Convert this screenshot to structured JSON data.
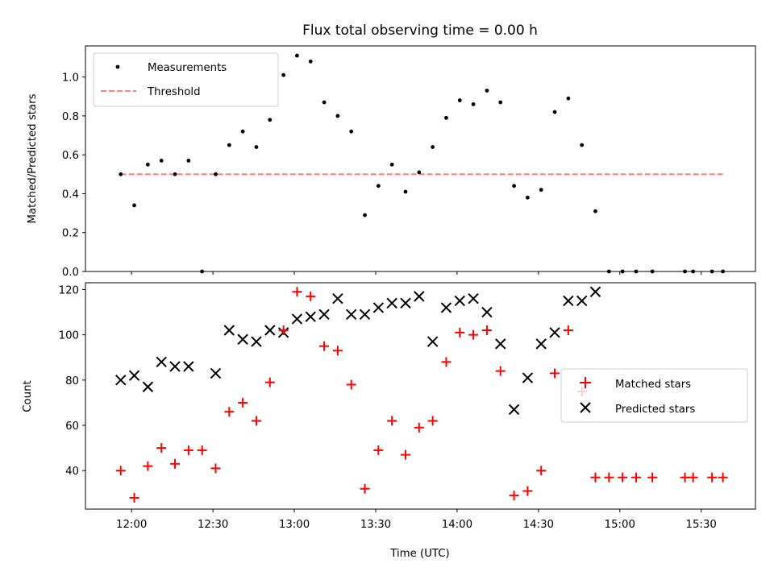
{
  "chart_data": [
    {
      "type": "scatter",
      "title": "Flux total observing time = 0.00 h",
      "xlabel": "",
      "ylabel": "Matched/Predicted stars",
      "ylim": [
        0,
        1.16
      ],
      "yticks": [
        "0.0",
        "0.2",
        "0.4",
        "0.6",
        "0.8",
        "1.0"
      ],
      "xlim": [
        "11:43",
        "15:50"
      ],
      "legend": {
        "placement": "top-left",
        "entries": [
          "Measurements",
          "Threshold"
        ]
      },
      "series": [
        {
          "name": "Measurements",
          "marker": "dot",
          "color": "#000000",
          "x": [
            "11:56",
            "12:01",
            "12:06",
            "12:11",
            "12:16",
            "12:21",
            "12:26",
            "12:31",
            "12:36",
            "12:41",
            "12:46",
            "12:51",
            "12:56",
            "13:01",
            "13:06",
            "13:11",
            "13:16",
            "13:21",
            "13:26",
            "13:31",
            "13:36",
            "13:41",
            "13:46",
            "13:51",
            "13:56",
            "14:01",
            "14:06",
            "14:11",
            "14:16",
            "14:21",
            "14:26",
            "14:31",
            "14:36",
            "14:41",
            "14:46",
            "14:51",
            "14:56",
            "15:01",
            "15:06",
            "15:12",
            "15:24",
            "15:27",
            "15:34",
            "15:38"
          ],
          "y": [
            0.5,
            0.34,
            0.55,
            0.57,
            0.5,
            0.57,
            0.0,
            0.5,
            0.65,
            0.72,
            0.64,
            0.78,
            1.01,
            1.11,
            1.08,
            0.87,
            0.8,
            0.72,
            0.29,
            0.44,
            0.55,
            0.41,
            0.51,
            0.64,
            0.79,
            0.88,
            0.86,
            0.93,
            0.87,
            0.44,
            0.38,
            0.42,
            0.82,
            0.89,
            0.65,
            0.31,
            0.0,
            0.0,
            0.0,
            0.0,
            0.0,
            0.0,
            0.0,
            0.0
          ]
        },
        {
          "name": "Threshold",
          "style": "dashed",
          "color": "#ff7f7f",
          "x": [
            "11:56",
            "15:38"
          ],
          "y": [
            0.5,
            0.5
          ]
        }
      ]
    },
    {
      "type": "scatter",
      "title": "",
      "xlabel": "Time (UTC)",
      "ylabel": "Count",
      "ylim": [
        23,
        123
      ],
      "yticks": [
        "40",
        "60",
        "80",
        "100",
        "120"
      ],
      "xlim": [
        "11:43",
        "15:50"
      ],
      "xticks": [
        "12:00",
        "12:30",
        "13:00",
        "13:30",
        "14:00",
        "14:30",
        "15:00",
        "15:30"
      ],
      "legend": {
        "placement": "center-right",
        "entries": [
          "Matched stars",
          "Predicted stars"
        ]
      },
      "series": [
        {
          "name": "Matched stars",
          "marker": "plus",
          "color": "#ff0000",
          "x": [
            "11:56",
            "12:01",
            "12:06",
            "12:11",
            "12:16",
            "12:21",
            "12:26",
            "12:31",
            "12:36",
            "12:41",
            "12:46",
            "12:51",
            "12:56",
            "13:01",
            "13:06",
            "13:11",
            "13:16",
            "13:21",
            "13:26",
            "13:31",
            "13:36",
            "13:41",
            "13:46",
            "13:51",
            "13:56",
            "14:01",
            "14:06",
            "14:11",
            "14:16",
            "14:21",
            "14:26",
            "14:31",
            "14:36",
            "14:41",
            "14:46",
            "14:51",
            "14:56",
            "15:01",
            "15:06",
            "15:12",
            "15:24",
            "15:27",
            "15:34",
            "15:38"
          ],
          "y": [
            40,
            28,
            42,
            50,
            43,
            49,
            49,
            41,
            66,
            70,
            62,
            79,
            102,
            119,
            117,
            95,
            93,
            78,
            32,
            49,
            62,
            47,
            59,
            62,
            88,
            101,
            100,
            102,
            84,
            29,
            31,
            40,
            83,
            102,
            75,
            37,
            37,
            37,
            37,
            37,
            37,
            37,
            37,
            37
          ]
        },
        {
          "name": "Predicted stars",
          "marker": "x",
          "color": "#000000",
          "x": [
            "11:56",
            "12:01",
            "12:06",
            "12:11",
            "12:16",
            "12:21",
            "12:31",
            "12:36",
            "12:41",
            "12:46",
            "12:51",
            "12:56",
            "13:01",
            "13:06",
            "13:11",
            "13:16",
            "13:21",
            "13:26",
            "13:31",
            "13:36",
            "13:41",
            "13:46",
            "13:51",
            "13:56",
            "14:01",
            "14:06",
            "14:11",
            "14:16",
            "14:21",
            "14:26",
            "14:31",
            "14:36",
            "14:41",
            "14:46",
            "14:51"
          ],
          "y": [
            80,
            82,
            77,
            88,
            86,
            86,
            83,
            102,
            98,
            97,
            102,
            101,
            107,
            108,
            109,
            116,
            109,
            109,
            112,
            114,
            114,
            117,
            97,
            112,
            115,
            116,
            110,
            96,
            67,
            81,
            96,
            101,
            115,
            115,
            119
          ]
        }
      ]
    }
  ]
}
